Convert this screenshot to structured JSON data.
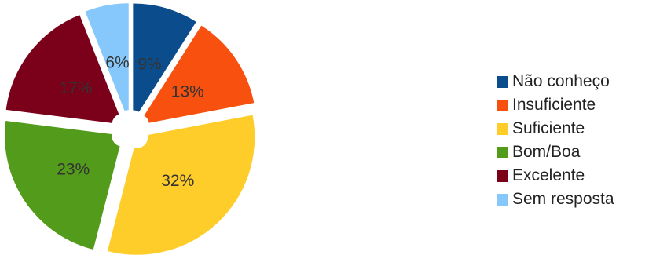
{
  "chart_data": {
    "type": "pie",
    "legend_position": "right",
    "slices": [
      {
        "label": "Não conheço",
        "value": 9,
        "value_label": "9%",
        "color": "#0b4d8c"
      },
      {
        "label": "Insuficiente",
        "value": 13,
        "value_label": "13%",
        "color": "#f8500f"
      },
      {
        "label": "Suficiente",
        "value": 32,
        "value_label": "32%",
        "color": "#fecd29"
      },
      {
        "label": "Bom/Boa",
        "value": 23,
        "value_label": "23%",
        "color": "#539b1a"
      },
      {
        "label": "Excelente",
        "value": 17,
        "value_label": "17%",
        "color": "#7b0019"
      },
      {
        "label": "Sem resposta",
        "value": 6,
        "value_label": "6%",
        "color": "#86c8fb"
      }
    ]
  }
}
